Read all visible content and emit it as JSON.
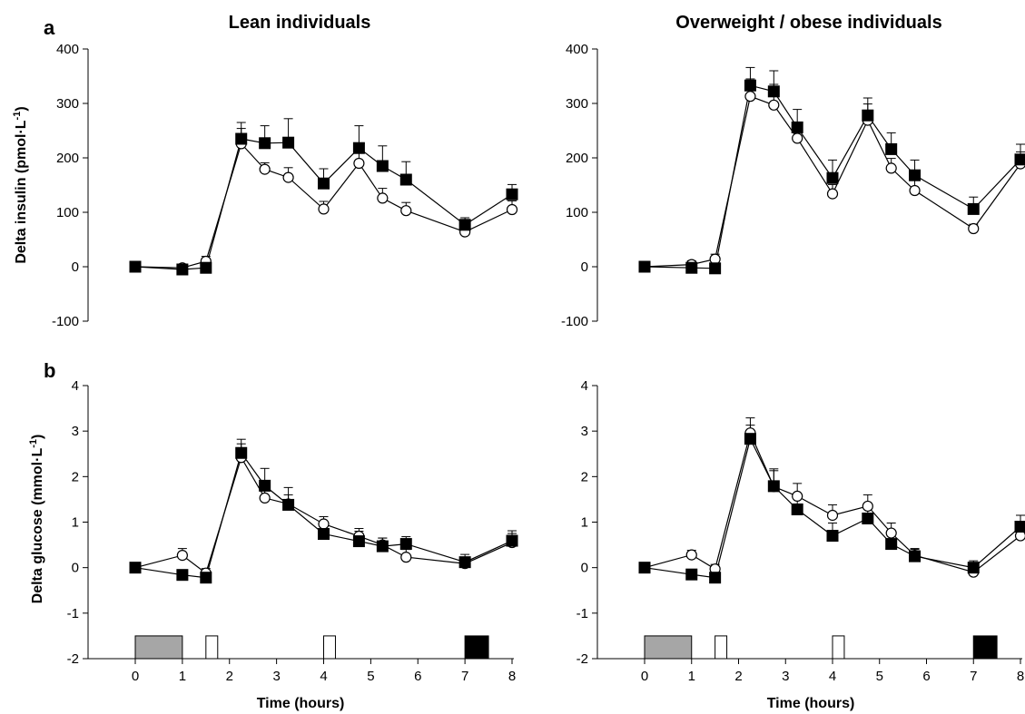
{
  "titles": {
    "lean": "Lean individuals",
    "overweight": "Overweight / obese individuals"
  },
  "panel_labels": {
    "a": "a",
    "b": "b"
  },
  "axis_labels": {
    "insulin_y": "Delta insulin (pmol·L",
    "glucose_y": "Delta glucose (mmol·L",
    "y_superscript": "-1",
    "y_close": ")",
    "x": "Time (hours)"
  },
  "colors": {
    "filled_series": "#000000",
    "open_series": "#ffffff",
    "gray_bar": "#a6a6a6"
  },
  "chart_data": [
    {
      "id": "insulin-lean",
      "type": "line",
      "group": "Lean individuals",
      "ylim": [
        -100,
        400
      ],
      "yticks": [
        -100,
        0,
        100,
        200,
        300,
        400
      ],
      "xlim": [
        0,
        8
      ],
      "xticks": [
        0,
        1,
        2,
        3,
        4,
        5,
        6,
        7,
        8
      ],
      "show_xticklabels": false,
      "series": [
        {
          "marker": "square-filled",
          "x": [
            0,
            1,
            1.5,
            2.25,
            2.75,
            3.25,
            4,
            4.75,
            5.25,
            5.75,
            7,
            8
          ],
          "y": [
            0,
            -5,
            -2,
            235,
            227,
            228,
            153,
            218,
            185,
            160,
            77,
            133
          ],
          "err": [
            8,
            8,
            8,
            30,
            32,
            44,
            27,
            41,
            37,
            33,
            13,
            18
          ]
        },
        {
          "marker": "circle-open",
          "x": [
            0,
            1,
            1.5,
            2.25,
            2.75,
            3.25,
            4,
            4.75,
            5.25,
            5.75,
            7,
            8
          ],
          "y": [
            0,
            -2,
            10,
            226,
            179,
            164,
            106,
            190,
            126,
            103,
            64,
            105
          ],
          "err": [
            7,
            7,
            9,
            28,
            12,
            18,
            14,
            30,
            18,
            15,
            13,
            16
          ]
        }
      ]
    },
    {
      "id": "insulin-overweight",
      "type": "line",
      "group": "Overweight / obese individuals",
      "ylim": [
        -100,
        400
      ],
      "yticks": [
        -100,
        0,
        100,
        200,
        300,
        400
      ],
      "xlim": [
        0,
        8
      ],
      "xticks": [
        0,
        1,
        2,
        3,
        4,
        5,
        6,
        7,
        8
      ],
      "show_xticklabels": false,
      "series": [
        {
          "marker": "square-filled",
          "x": [
            0,
            1,
            1.5,
            2.25,
            2.75,
            3.25,
            4,
            4.75,
            5.25,
            5.75,
            7,
            8
          ],
          "y": [
            0,
            -2,
            -3,
            333,
            322,
            256,
            163,
            278,
            216,
            168,
            106,
            197
          ],
          "err": [
            7,
            7,
            7,
            33,
            38,
            33,
            33,
            32,
            30,
            28,
            22,
            28
          ]
        },
        {
          "marker": "circle-open",
          "x": [
            0,
            1,
            1.5,
            2.25,
            2.75,
            3.25,
            4,
            4.75,
            5.25,
            5.75,
            7,
            8
          ],
          "y": [
            0,
            4,
            14,
            313,
            297,
            236,
            134,
            269,
            181,
            140,
            70,
            189
          ],
          "err": [
            7,
            7,
            9,
            32,
            38,
            28,
            17,
            30,
            18,
            20,
            8,
            22
          ]
        }
      ]
    },
    {
      "id": "glucose-lean",
      "type": "line",
      "group": "Lean individuals",
      "ylim": [
        -2,
        4
      ],
      "yticks": [
        -2,
        -1,
        0,
        1,
        2,
        3,
        4
      ],
      "xlim": [
        0,
        8
      ],
      "xticks": [
        0,
        1,
        2,
        3,
        4,
        5,
        6,
        7,
        8
      ],
      "show_xticklabels": true,
      "xlabel": "Time (hours)",
      "series": [
        {
          "marker": "square-filled",
          "x": [
            0,
            1,
            1.5,
            2.25,
            2.75,
            3.25,
            4,
            4.75,
            5.25,
            5.75,
            7,
            8
          ],
          "y": [
            0,
            -0.16,
            -0.22,
            2.52,
            1.8,
            1.38,
            0.74,
            0.58,
            0.47,
            0.52,
            0.12,
            0.59
          ],
          "err": [
            0.07,
            0.07,
            0.07,
            0.3,
            0.38,
            0.38,
            0.28,
            0.22,
            0.18,
            0.16,
            0.17,
            0.22
          ]
        },
        {
          "marker": "circle-open",
          "x": [
            0,
            1,
            1.5,
            2.25,
            2.75,
            3.25,
            4,
            4.75,
            5.25,
            5.75,
            7,
            8
          ],
          "y": [
            0,
            0.27,
            -0.12,
            2.42,
            1.53,
            1.4,
            0.96,
            0.69,
            0.5,
            0.23,
            0.09,
            0.55
          ],
          "err": [
            0.07,
            0.15,
            0.1,
            0.3,
            0.25,
            0.2,
            0.16,
            0.17,
            0.15,
            0.17,
            0.1,
            0.2
          ]
        }
      ]
    },
    {
      "id": "glucose-overweight",
      "type": "line",
      "group": "Overweight / obese individuals",
      "ylim": [
        -2,
        4
      ],
      "yticks": [
        -2,
        -1,
        0,
        1,
        2,
        3,
        4
      ],
      "xlim": [
        0,
        8
      ],
      "xticks": [
        0,
        1,
        2,
        3,
        4,
        5,
        6,
        7,
        8
      ],
      "show_xticklabels": true,
      "xlabel": "Time (hours)",
      "series": [
        {
          "marker": "square-filled",
          "x": [
            0,
            1,
            1.5,
            2.25,
            2.75,
            3.25,
            4,
            4.75,
            5.25,
            5.75,
            7,
            8
          ],
          "y": [
            0,
            -0.15,
            -0.22,
            2.83,
            1.79,
            1.28,
            0.7,
            1.08,
            0.52,
            0.25,
            0,
            0.9
          ],
          "err": [
            0.07,
            0.07,
            0.07,
            0.3,
            0.38,
            0.3,
            0.28,
            0.25,
            0.25,
            0.15,
            0.15,
            0.25
          ]
        },
        {
          "marker": "circle-open",
          "x": [
            0,
            1,
            1.5,
            2.25,
            2.75,
            3.25,
            4,
            4.75,
            5.25,
            5.75,
            7,
            8
          ],
          "y": [
            0,
            0.28,
            -0.03,
            2.96,
            1.78,
            1.57,
            1.15,
            1.35,
            0.76,
            0.27,
            -0.1,
            0.7
          ],
          "err": [
            0.07,
            0.1,
            0.1,
            0.33,
            0.35,
            0.28,
            0.23,
            0.25,
            0.22,
            0.15,
            0.15,
            0.25
          ]
        }
      ]
    }
  ],
  "timeline_bars": [
    {
      "start": 0,
      "end": 1,
      "fill": "#a6a6a6"
    },
    {
      "start": 1.5,
      "end": 1.75,
      "fill": "#ffffff"
    },
    {
      "start": 4,
      "end": 4.25,
      "fill": "#ffffff"
    },
    {
      "start": 7,
      "end": 7.5,
      "fill": "#000000"
    }
  ]
}
